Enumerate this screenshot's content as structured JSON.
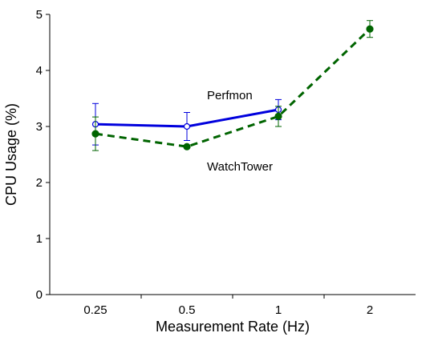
{
  "chart_data": {
    "type": "line",
    "xlabel": "Measurement Rate (Hz)",
    "ylabel": "CPU Usage (%)",
    "categories": [
      "0.25",
      "0.5",
      "1",
      "2"
    ],
    "ylim": [
      0,
      5
    ],
    "yticks": [
      "0",
      "1",
      "2",
      "3",
      "4",
      "5"
    ],
    "grid": false,
    "legend": "none",
    "series": [
      {
        "name": "Perfmon",
        "color": "#0000dd",
        "line_style": "solid",
        "marker": "open-circle",
        "x": [
          "0.25",
          "0.5",
          "1"
        ],
        "values": [
          3.04,
          3.0,
          3.3
        ],
        "error": [
          0.37,
          0.25,
          0.18
        ]
      },
      {
        "name": "WatchTower",
        "color": "#006400",
        "line_style": "dashed",
        "marker": "filled-circle",
        "x": [
          "0.25",
          "0.5",
          "1",
          "2"
        ],
        "values": [
          2.87,
          2.64,
          3.18,
          4.74
        ],
        "error": [
          0.3,
          0.0,
          0.18,
          0.15
        ]
      }
    ],
    "annotations": [
      {
        "text": "Perfmon",
        "series": "Perfmon"
      },
      {
        "text": "WatchTower",
        "series": "WatchTower"
      }
    ]
  }
}
